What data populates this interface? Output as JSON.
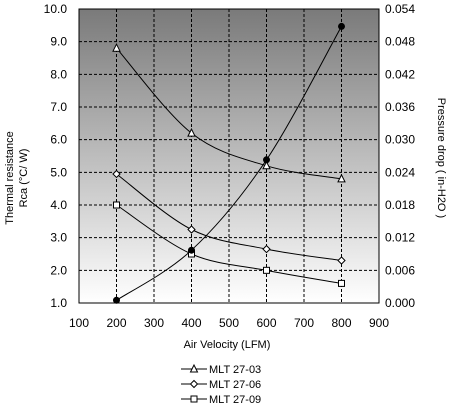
{
  "chart_data": {
    "type": "line",
    "title": "",
    "xlabel": "Air Velocity (LFM)",
    "ylabel_left": [
      "Thermal resistance",
      "Rca (°C/ W)"
    ],
    "ylabel_right": "Pressure drop  ( in-H2O )",
    "xlim": [
      100,
      900
    ],
    "ylim_left": [
      1.0,
      10.0
    ],
    "ylim_right": [
      0.0,
      0.054
    ],
    "x_ticks": [
      "100",
      "200",
      "300",
      "400",
      "500",
      "600",
      "700",
      "800",
      "900"
    ],
    "y_left_ticks": [
      "1.0",
      "2.0",
      "3.0",
      "4.0",
      "5.0",
      "6.0",
      "7.0",
      "8.0",
      "9.0",
      "10.0"
    ],
    "y_right_ticks": [
      "0.000",
      "0.006",
      "0.012",
      "0.018",
      "0.024",
      "0.030",
      "0.036",
      "0.042",
      "0.048",
      "0.054"
    ],
    "grid": true,
    "legend_position": "bottom",
    "series": [
      {
        "name": "MLT 27-03",
        "axis": "left",
        "marker": "triangle",
        "smooth": true,
        "x": [
          200,
          400,
          600,
          800
        ],
        "y": [
          8.8,
          6.2,
          5.2,
          4.8
        ]
      },
      {
        "name": "MLT 27-06",
        "axis": "left",
        "marker": "diamond",
        "smooth": true,
        "x": [
          200,
          400,
          600,
          800
        ],
        "y": [
          4.95,
          3.25,
          2.65,
          2.3
        ]
      },
      {
        "name": "MLT 27-09",
        "axis": "left",
        "marker": "square",
        "smooth": true,
        "x": [
          200,
          400,
          600,
          800
        ],
        "y": [
          4.0,
          2.5,
          2.0,
          1.6
        ]
      },
      {
        "name": "",
        "axis": "right",
        "marker": "dot",
        "smooth": true,
        "x": [
          200,
          400,
          600,
          800
        ],
        "y": [
          0.0005,
          0.0097,
          0.0263,
          0.0508
        ]
      }
    ],
    "colors": {
      "plot_gradient_top": "#7a7a7a",
      "plot_gradient_bottom": "#ffffff",
      "grid": "#000000",
      "line": "#000000"
    }
  }
}
